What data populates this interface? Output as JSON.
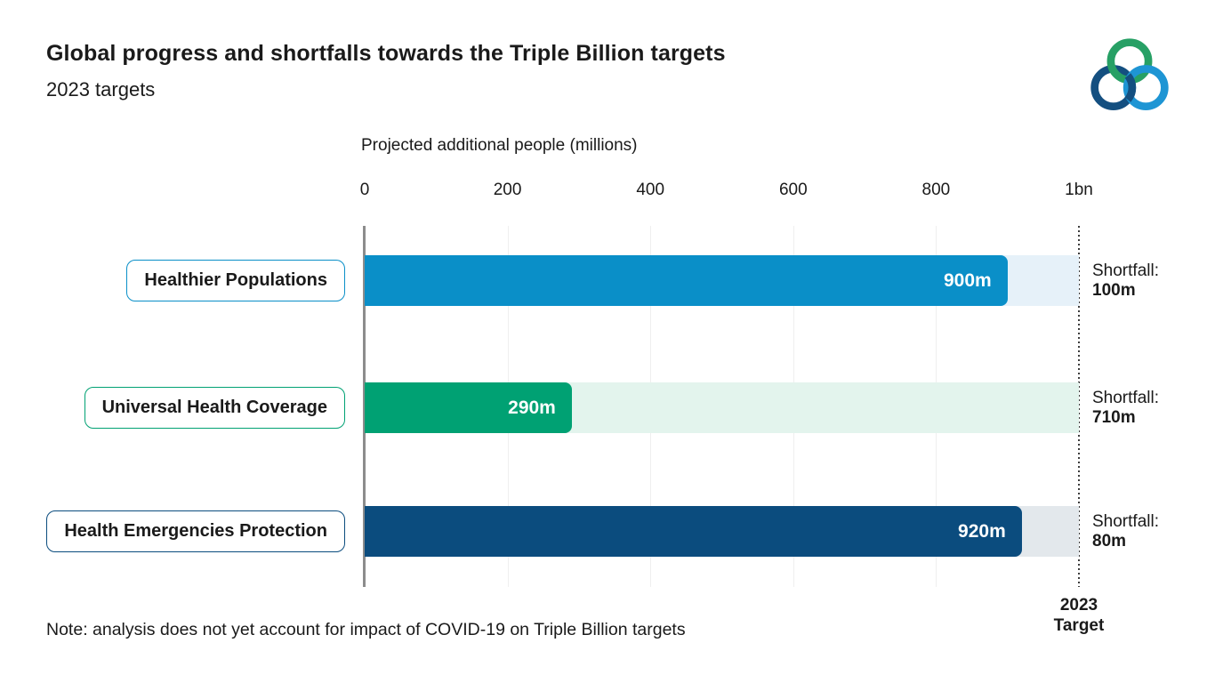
{
  "header": {
    "title": "Global progress and shortfalls towards the Triple Billion targets",
    "subtitle": "2023 targets"
  },
  "logo": {
    "name": "triple-billion-logo",
    "ring_colors": {
      "top": "#27a065",
      "left": "#144f80",
      "right": "#1e95d4"
    }
  },
  "chart_data": {
    "type": "bar",
    "orientation": "horizontal",
    "axis_title": "Projected additional people (millions)",
    "xlim": [
      0,
      1000
    ],
    "ticks": [
      {
        "label": "0",
        "value": 0
      },
      {
        "label": "200",
        "value": 200
      },
      {
        "label": "400",
        "value": 400
      },
      {
        "label": "600",
        "value": 600
      },
      {
        "label": "800",
        "value": 800
      },
      {
        "label": "1bn",
        "value": 1000
      }
    ],
    "grid": "vertical-light",
    "target_line": {
      "value": 1000,
      "label": "2023\nTarget",
      "style": "dotted"
    },
    "shortfall_prefix": "Shortfall:",
    "rows": [
      {
        "label": "Healthier Populations",
        "value": 900,
        "value_label": "900m",
        "shortfall": 100,
        "shortfall_value_label": "100m",
        "bar_color": "#0a8fc8",
        "track_color": "#e6f1f9"
      },
      {
        "label": "Universal Health Coverage",
        "value": 290,
        "value_label": "290m",
        "shortfall": 710,
        "shortfall_value_label": "710m",
        "bar_color": "#00a173",
        "track_color": "#e3f4ed"
      },
      {
        "label": "Health Emergencies Protection",
        "value": 920,
        "value_label": "920m",
        "shortfall": 80,
        "shortfall_value_label": "80m",
        "bar_color": "#0b4c7e",
        "track_color": "#e3e8ec"
      }
    ]
  },
  "note": "Note: analysis does not yet account for impact of COVID-19 on Triple Billion targets"
}
